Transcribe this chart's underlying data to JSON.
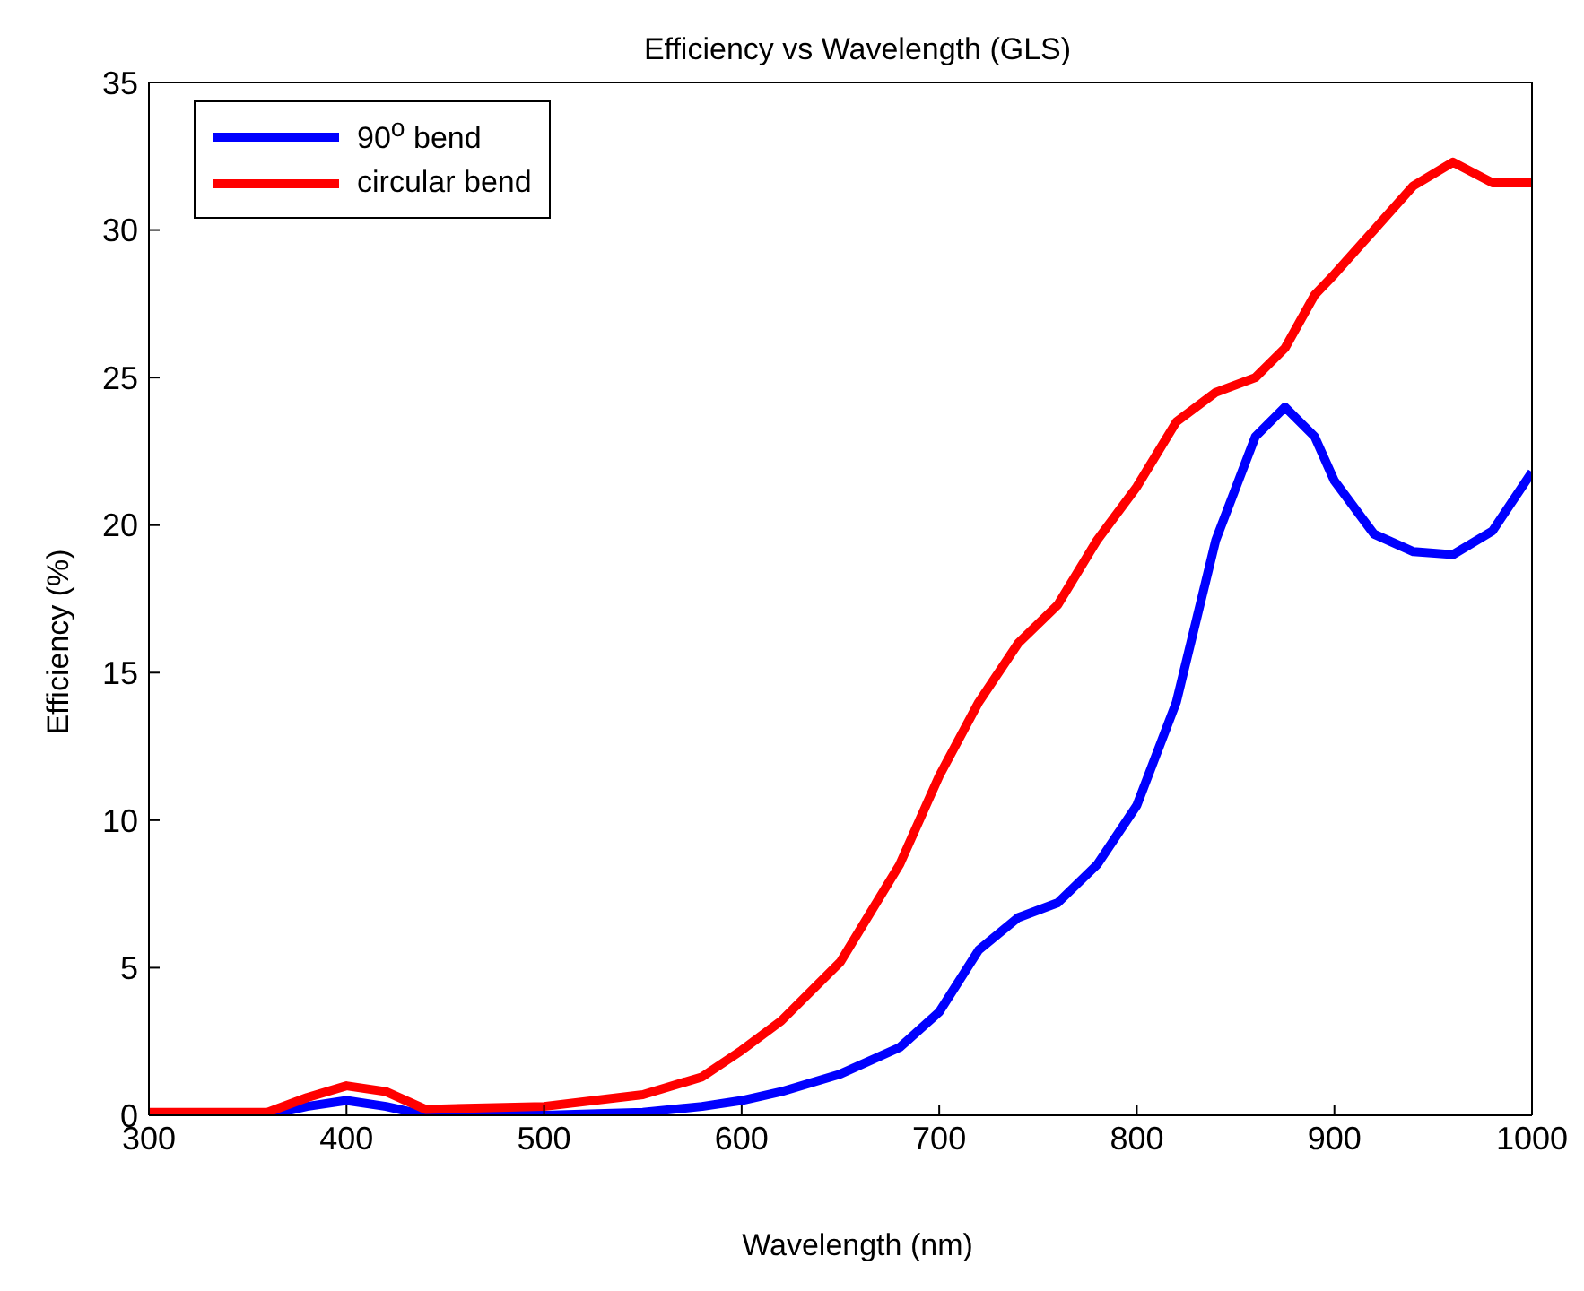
{
  "chart_data": {
    "type": "line",
    "title": "Efficiency vs Wavelength (GLS)",
    "xlabel": "Wavelength (nm)",
    "ylabel": "Efficiency (%)",
    "x": [
      300,
      360,
      380,
      400,
      420,
      440,
      500,
      550,
      580,
      600,
      620,
      650,
      680,
      700,
      720,
      740,
      760,
      780,
      800,
      820,
      840,
      860,
      875,
      890,
      900,
      920,
      940,
      960,
      980,
      1000
    ],
    "series": [
      {
        "name": "90$^{o}$ bend",
        "color": "#0000ff",
        "values": [
          0,
          0,
          0.3,
          0.5,
          0.3,
          0,
          0,
          0.1,
          0.3,
          0.5,
          0.8,
          1.4,
          2.3,
          3.5,
          5.6,
          6.7,
          7.2,
          8.5,
          10.5,
          14,
          19.5,
          23,
          24,
          23,
          21.5,
          19.7,
          19.1,
          19,
          19.8,
          21.8
        ]
      },
      {
        "name": "circular bend",
        "color": "#ff0000",
        "values": [
          0.1,
          0.1,
          0.6,
          1,
          0.8,
          0.2,
          0.3,
          0.7,
          1.3,
          2.2,
          3.2,
          5.2,
          8.5,
          11.5,
          14,
          16,
          17.3,
          19.5,
          21.3,
          23.5,
          24.5,
          25,
          26,
          27.8,
          28.5,
          30,
          31.5,
          32.3,
          31.6,
          31.6
        ]
      }
    ],
    "xlim": [
      300,
      1000
    ],
    "xticks": [
      300,
      400,
      500,
      600,
      700,
      800,
      900,
      1000
    ],
    "ylim": [
      0,
      35
    ],
    "yticks": [
      0,
      5,
      10,
      15,
      20,
      25,
      30,
      35
    ],
    "legend": "top left",
    "marker": "none",
    "line_style": "solid",
    "grid": false
  }
}
